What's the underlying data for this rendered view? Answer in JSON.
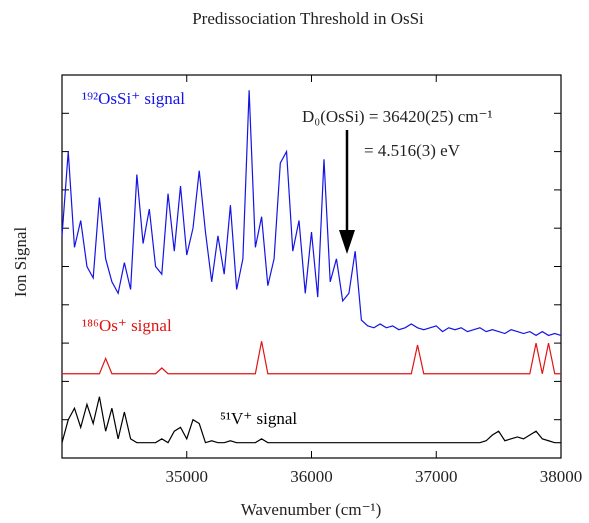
{
  "chart_data": {
    "type": "line",
    "title": "Predissociation Threshold in OsSi",
    "x_label": "Wavenumber (cm⁻¹)",
    "y_label": "Ion Signal",
    "annotations": [
      "D₀(OsSi) = 36420(25) cm⁻¹",
      "=  4.516(3) eV"
    ],
    "x": [
      34000,
      34050,
      34100,
      34150,
      34200,
      34250,
      34300,
      34350,
      34400,
      34450,
      34500,
      34550,
      34600,
      34650,
      34700,
      34750,
      34800,
      34850,
      34900,
      34950,
      35000,
      35050,
      35100,
      35150,
      35200,
      35250,
      35300,
      35350,
      35400,
      35450,
      35500,
      35550,
      35600,
      35650,
      35700,
      35750,
      35800,
      35850,
      35900,
      35950,
      36000,
      36050,
      36100,
      36150,
      36200,
      36250,
      36300,
      36350,
      36400,
      36450,
      36500,
      36550,
      36600,
      36650,
      36700,
      36750,
      36800,
      36850,
      36900,
      36950,
      37000,
      37050,
      37100,
      37150,
      37200,
      37250,
      37300,
      37350,
      37400,
      37450,
      37500,
      37550,
      37600,
      37650,
      37700,
      37750,
      37800,
      37850,
      37900,
      37950,
      38000
    ],
    "series": [
      {
        "name": "¹⁹²OsSi⁺ signal",
        "color": "#1414e6",
        "values": [
          5.8,
          8.0,
          5.5,
          6.2,
          5.0,
          4.7,
          6.8,
          5.2,
          4.6,
          4.3,
          5.1,
          4.4,
          7.4,
          5.6,
          6.5,
          5.0,
          4.8,
          6.9,
          5.4,
          7.1,
          5.3,
          6.0,
          7.5,
          5.9,
          4.6,
          5.8,
          4.8,
          6.6,
          4.4,
          5.2,
          9.6,
          5.5,
          6.3,
          4.5,
          5.2,
          7.7,
          8.0,
          5.4,
          6.2,
          4.3,
          5.9,
          4.2,
          7.8,
          4.6,
          5.2,
          4.1,
          4.3,
          5.4,
          3.6,
          3.45,
          3.4,
          3.5,
          3.4,
          3.45,
          3.35,
          3.4,
          3.5,
          3.4,
          3.35,
          3.4,
          3.45,
          3.3,
          3.4,
          3.35,
          3.4,
          3.3,
          3.35,
          3.4,
          3.3,
          3.35,
          3.3,
          3.25,
          3.35,
          3.3,
          3.25,
          3.3,
          3.2,
          3.3,
          3.2,
          3.25,
          3.2
        ]
      },
      {
        "name": "¹⁸⁶Os⁺ signal",
        "color": "#e01414",
        "values": [
          2.2,
          2.2,
          2.2,
          2.2,
          2.2,
          2.2,
          2.2,
          2.6,
          2.2,
          2.2,
          2.2,
          2.2,
          2.2,
          2.2,
          2.2,
          2.2,
          2.35,
          2.2,
          2.2,
          2.2,
          2.2,
          2.2,
          2.2,
          2.2,
          2.2,
          2.2,
          2.2,
          2.2,
          2.2,
          2.2,
          2.2,
          2.2,
          3.05,
          2.2,
          2.2,
          2.2,
          2.2,
          2.2,
          2.2,
          2.2,
          2.2,
          2.2,
          2.2,
          2.2,
          2.2,
          2.2,
          2.2,
          2.2,
          2.2,
          2.2,
          2.2,
          2.2,
          2.2,
          2.2,
          2.2,
          2.2,
          2.2,
          2.95,
          2.2,
          2.2,
          2.2,
          2.2,
          2.2,
          2.2,
          2.2,
          2.2,
          2.2,
          2.2,
          2.2,
          2.2,
          2.2,
          2.2,
          2.2,
          2.2,
          2.2,
          2.2,
          3.0,
          2.2,
          3.0,
          2.2,
          2.2
        ]
      },
      {
        "name": "⁵¹V⁺ signal",
        "color": "#000000",
        "values": [
          0.4,
          1.0,
          1.3,
          0.8,
          1.4,
          0.9,
          1.6,
          0.7,
          1.3,
          0.5,
          1.2,
          0.5,
          0.4,
          0.4,
          0.4,
          0.4,
          0.5,
          0.4,
          0.7,
          0.8,
          0.5,
          1.0,
          0.9,
          0.4,
          0.45,
          0.4,
          0.4,
          0.45,
          0.4,
          0.4,
          0.4,
          0.4,
          0.5,
          0.4,
          0.4,
          0.4,
          0.4,
          0.4,
          0.4,
          0.4,
          0.4,
          0.4,
          0.4,
          0.4,
          0.4,
          0.4,
          0.4,
          0.4,
          0.4,
          0.4,
          0.4,
          0.4,
          0.4,
          0.4,
          0.4,
          0.4,
          0.4,
          0.4,
          0.4,
          0.4,
          0.4,
          0.4,
          0.4,
          0.4,
          0.4,
          0.4,
          0.4,
          0.4,
          0.45,
          0.6,
          0.7,
          0.45,
          0.5,
          0.55,
          0.5,
          0.6,
          0.7,
          0.5,
          0.45,
          0.4,
          0.4
        ]
      }
    ],
    "xlim": [
      34000,
      38000
    ],
    "xticks": [
      35000,
      36000,
      37000,
      38000
    ],
    "ylim": [
      0,
      10
    ],
    "yticks": [
      1,
      2,
      3,
      4,
      5,
      6,
      7,
      8,
      9
    ]
  }
}
